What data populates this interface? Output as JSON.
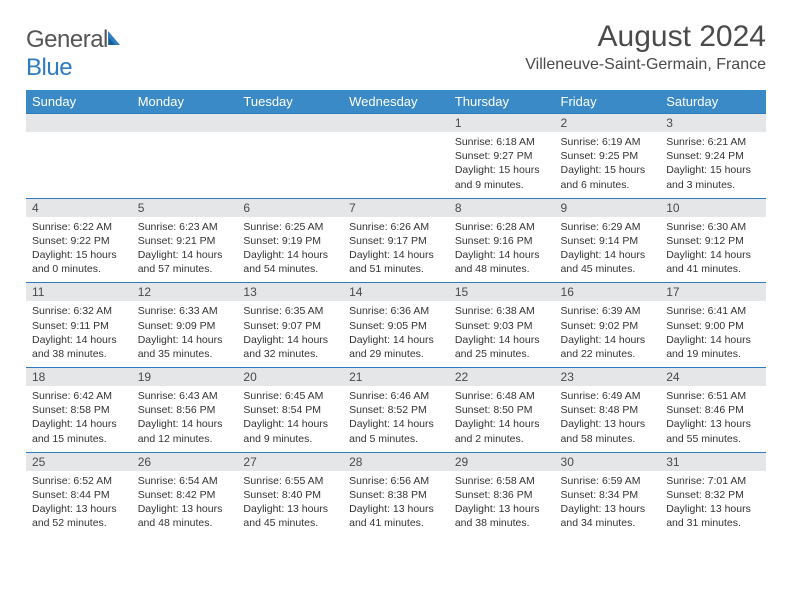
{
  "logo": {
    "text1": "General",
    "text2": "Blue"
  },
  "title": "August 2024",
  "location": "Villeneuve-Saint-Germain, France",
  "colors": {
    "header_bg": "#3a8ac7",
    "header_text": "#ffffff",
    "date_bar_bg": "#e4e6e8",
    "border": "#2f7bbf",
    "text": "#333333",
    "title_text": "#4a4a4a"
  },
  "day_names": [
    "Sunday",
    "Monday",
    "Tuesday",
    "Wednesday",
    "Thursday",
    "Friday",
    "Saturday"
  ],
  "weeks": [
    [
      {
        "date": "",
        "sunrise": "",
        "sunset": "",
        "daylight_a": "",
        "daylight_b": ""
      },
      {
        "date": "",
        "sunrise": "",
        "sunset": "",
        "daylight_a": "",
        "daylight_b": ""
      },
      {
        "date": "",
        "sunrise": "",
        "sunset": "",
        "daylight_a": "",
        "daylight_b": ""
      },
      {
        "date": "",
        "sunrise": "",
        "sunset": "",
        "daylight_a": "",
        "daylight_b": ""
      },
      {
        "date": "1",
        "sunrise": "Sunrise: 6:18 AM",
        "sunset": "Sunset: 9:27 PM",
        "daylight_a": "Daylight: 15 hours",
        "daylight_b": "and 9 minutes."
      },
      {
        "date": "2",
        "sunrise": "Sunrise: 6:19 AM",
        "sunset": "Sunset: 9:25 PM",
        "daylight_a": "Daylight: 15 hours",
        "daylight_b": "and 6 minutes."
      },
      {
        "date": "3",
        "sunrise": "Sunrise: 6:21 AM",
        "sunset": "Sunset: 9:24 PM",
        "daylight_a": "Daylight: 15 hours",
        "daylight_b": "and 3 minutes."
      }
    ],
    [
      {
        "date": "4",
        "sunrise": "Sunrise: 6:22 AM",
        "sunset": "Sunset: 9:22 PM",
        "daylight_a": "Daylight: 15 hours",
        "daylight_b": "and 0 minutes."
      },
      {
        "date": "5",
        "sunrise": "Sunrise: 6:23 AM",
        "sunset": "Sunset: 9:21 PM",
        "daylight_a": "Daylight: 14 hours",
        "daylight_b": "and 57 minutes."
      },
      {
        "date": "6",
        "sunrise": "Sunrise: 6:25 AM",
        "sunset": "Sunset: 9:19 PM",
        "daylight_a": "Daylight: 14 hours",
        "daylight_b": "and 54 minutes."
      },
      {
        "date": "7",
        "sunrise": "Sunrise: 6:26 AM",
        "sunset": "Sunset: 9:17 PM",
        "daylight_a": "Daylight: 14 hours",
        "daylight_b": "and 51 minutes."
      },
      {
        "date": "8",
        "sunrise": "Sunrise: 6:28 AM",
        "sunset": "Sunset: 9:16 PM",
        "daylight_a": "Daylight: 14 hours",
        "daylight_b": "and 48 minutes."
      },
      {
        "date": "9",
        "sunrise": "Sunrise: 6:29 AM",
        "sunset": "Sunset: 9:14 PM",
        "daylight_a": "Daylight: 14 hours",
        "daylight_b": "and 45 minutes."
      },
      {
        "date": "10",
        "sunrise": "Sunrise: 6:30 AM",
        "sunset": "Sunset: 9:12 PM",
        "daylight_a": "Daylight: 14 hours",
        "daylight_b": "and 41 minutes."
      }
    ],
    [
      {
        "date": "11",
        "sunrise": "Sunrise: 6:32 AM",
        "sunset": "Sunset: 9:11 PM",
        "daylight_a": "Daylight: 14 hours",
        "daylight_b": "and 38 minutes."
      },
      {
        "date": "12",
        "sunrise": "Sunrise: 6:33 AM",
        "sunset": "Sunset: 9:09 PM",
        "daylight_a": "Daylight: 14 hours",
        "daylight_b": "and 35 minutes."
      },
      {
        "date": "13",
        "sunrise": "Sunrise: 6:35 AM",
        "sunset": "Sunset: 9:07 PM",
        "daylight_a": "Daylight: 14 hours",
        "daylight_b": "and 32 minutes."
      },
      {
        "date": "14",
        "sunrise": "Sunrise: 6:36 AM",
        "sunset": "Sunset: 9:05 PM",
        "daylight_a": "Daylight: 14 hours",
        "daylight_b": "and 29 minutes."
      },
      {
        "date": "15",
        "sunrise": "Sunrise: 6:38 AM",
        "sunset": "Sunset: 9:03 PM",
        "daylight_a": "Daylight: 14 hours",
        "daylight_b": "and 25 minutes."
      },
      {
        "date": "16",
        "sunrise": "Sunrise: 6:39 AM",
        "sunset": "Sunset: 9:02 PM",
        "daylight_a": "Daylight: 14 hours",
        "daylight_b": "and 22 minutes."
      },
      {
        "date": "17",
        "sunrise": "Sunrise: 6:41 AM",
        "sunset": "Sunset: 9:00 PM",
        "daylight_a": "Daylight: 14 hours",
        "daylight_b": "and 19 minutes."
      }
    ],
    [
      {
        "date": "18",
        "sunrise": "Sunrise: 6:42 AM",
        "sunset": "Sunset: 8:58 PM",
        "daylight_a": "Daylight: 14 hours",
        "daylight_b": "and 15 minutes."
      },
      {
        "date": "19",
        "sunrise": "Sunrise: 6:43 AM",
        "sunset": "Sunset: 8:56 PM",
        "daylight_a": "Daylight: 14 hours",
        "daylight_b": "and 12 minutes."
      },
      {
        "date": "20",
        "sunrise": "Sunrise: 6:45 AM",
        "sunset": "Sunset: 8:54 PM",
        "daylight_a": "Daylight: 14 hours",
        "daylight_b": "and 9 minutes."
      },
      {
        "date": "21",
        "sunrise": "Sunrise: 6:46 AM",
        "sunset": "Sunset: 8:52 PM",
        "daylight_a": "Daylight: 14 hours",
        "daylight_b": "and 5 minutes."
      },
      {
        "date": "22",
        "sunrise": "Sunrise: 6:48 AM",
        "sunset": "Sunset: 8:50 PM",
        "daylight_a": "Daylight: 14 hours",
        "daylight_b": "and 2 minutes."
      },
      {
        "date": "23",
        "sunrise": "Sunrise: 6:49 AM",
        "sunset": "Sunset: 8:48 PM",
        "daylight_a": "Daylight: 13 hours",
        "daylight_b": "and 58 minutes."
      },
      {
        "date": "24",
        "sunrise": "Sunrise: 6:51 AM",
        "sunset": "Sunset: 8:46 PM",
        "daylight_a": "Daylight: 13 hours",
        "daylight_b": "and 55 minutes."
      }
    ],
    [
      {
        "date": "25",
        "sunrise": "Sunrise: 6:52 AM",
        "sunset": "Sunset: 8:44 PM",
        "daylight_a": "Daylight: 13 hours",
        "daylight_b": "and 52 minutes."
      },
      {
        "date": "26",
        "sunrise": "Sunrise: 6:54 AM",
        "sunset": "Sunset: 8:42 PM",
        "daylight_a": "Daylight: 13 hours",
        "daylight_b": "and 48 minutes."
      },
      {
        "date": "27",
        "sunrise": "Sunrise: 6:55 AM",
        "sunset": "Sunset: 8:40 PM",
        "daylight_a": "Daylight: 13 hours",
        "daylight_b": "and 45 minutes."
      },
      {
        "date": "28",
        "sunrise": "Sunrise: 6:56 AM",
        "sunset": "Sunset: 8:38 PM",
        "daylight_a": "Daylight: 13 hours",
        "daylight_b": "and 41 minutes."
      },
      {
        "date": "29",
        "sunrise": "Sunrise: 6:58 AM",
        "sunset": "Sunset: 8:36 PM",
        "daylight_a": "Daylight: 13 hours",
        "daylight_b": "and 38 minutes."
      },
      {
        "date": "30",
        "sunrise": "Sunrise: 6:59 AM",
        "sunset": "Sunset: 8:34 PM",
        "daylight_a": "Daylight: 13 hours",
        "daylight_b": "and 34 minutes."
      },
      {
        "date": "31",
        "sunrise": "Sunrise: 7:01 AM",
        "sunset": "Sunset: 8:32 PM",
        "daylight_a": "Daylight: 13 hours",
        "daylight_b": "and 31 minutes."
      }
    ]
  ]
}
